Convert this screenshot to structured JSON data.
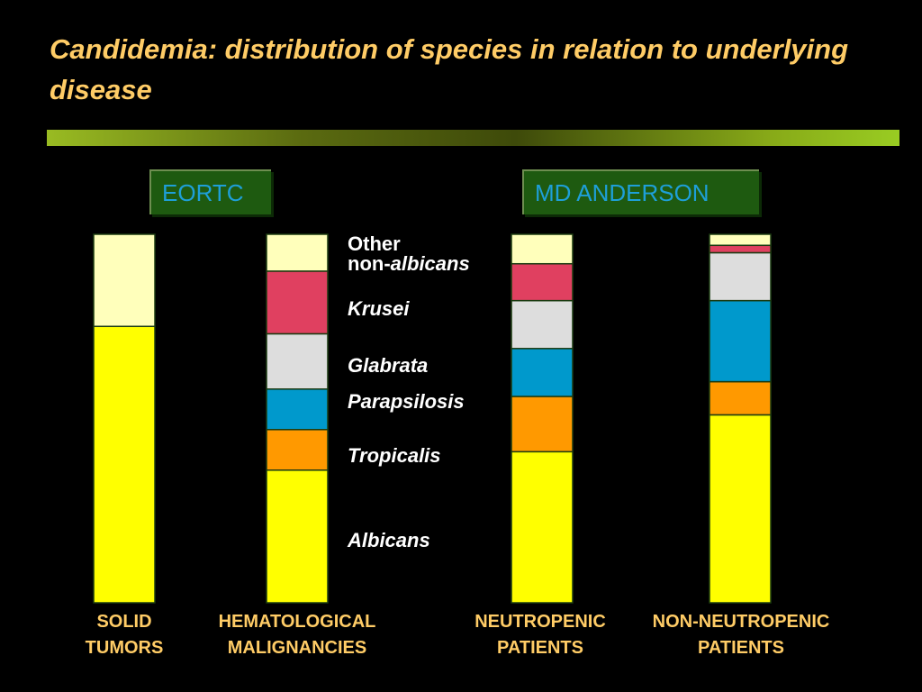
{
  "slide": {
    "title": "Candidemia: distribution of species in relation to underlying disease"
  },
  "groups": [
    {
      "label": "EORTC"
    },
    {
      "label": "MD ANDERSON"
    }
  ],
  "legend": {
    "other_line1": "Other",
    "other_line2_prefix": "non-",
    "other_line2_italic": "albicans",
    "krusei": "Krusei",
    "glabrata": "Glabrata",
    "parapsilosis": "Parapsilosis",
    "tropicalis": "Tropicalis",
    "albicans": "Albicans"
  },
  "categories": [
    {
      "line1": "SOLID",
      "line2": "TUMORS"
    },
    {
      "line1": "HEMATOLOGICAL",
      "line2": "MALIGNANCIES"
    },
    {
      "line1": "NEUTROPENIC",
      "line2": "PATIENTS"
    },
    {
      "line1": "NON-NEUTROPENIC",
      "line2": "PATIENTS"
    }
  ],
  "colors": {
    "Albicans": "#FFFF00",
    "Tropicalis": "#FF9900",
    "Parapsilosis": "#0099CC",
    "Glabrata": "#DDDDDD",
    "Krusei": "#E04060",
    "Other non-albicans": "#FFFFBB",
    "title": "#FFCC66",
    "group_label_text": "#1E9FD8",
    "group_label_bg": "#1E5A10"
  },
  "chart_data": {
    "type": "bar",
    "stacked": true,
    "categories": [
      "SOLID TUMORS",
      "HEMATOLOGICAL MALIGNANCIES",
      "NEUTROPENIC PATIENTS",
      "NON-NEUTROPENIC PATIENTS"
    ],
    "series": [
      {
        "name": "Albicans",
        "values": [
          75,
          36,
          41,
          51
        ]
      },
      {
        "name": "Tropicalis",
        "values": [
          0,
          11,
          15,
          9
        ]
      },
      {
        "name": "Parapsilosis",
        "values": [
          0,
          11,
          13,
          22
        ]
      },
      {
        "name": "Glabrata",
        "values": [
          0,
          15,
          13,
          13
        ]
      },
      {
        "name": "Krusei",
        "values": [
          0,
          17,
          10,
          2
        ]
      },
      {
        "name": "Other non-albicans",
        "values": [
          25,
          10,
          8,
          3
        ]
      }
    ],
    "ylim": [
      0,
      100
    ],
    "grid": false,
    "legend": "middle"
  }
}
